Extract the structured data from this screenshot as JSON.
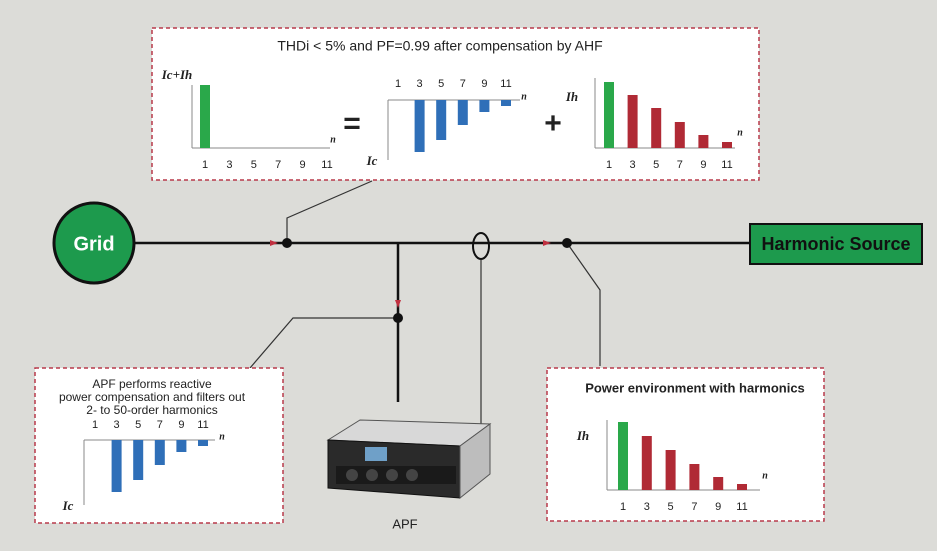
{
  "top_panel": {
    "title": "THDi < 5% and PF=0.99 after compensation by  AHF",
    "total_chart": {
      "y_label": "Ic+Ih",
      "x_label": "n",
      "orders": [
        1,
        3,
        5,
        7,
        9,
        11
      ]
    },
    "equals": "=",
    "ic_chart": {
      "y_label": "Ic",
      "x_label": "n",
      "orders": [
        1,
        3,
        5,
        7,
        9,
        11
      ]
    },
    "plus": "+",
    "ih_chart": {
      "y_label": "Ih",
      "x_label": "n",
      "orders": [
        1,
        3,
        5,
        7,
        9,
        11
      ]
    }
  },
  "grid": {
    "label": "Grid"
  },
  "harmonic_source": {
    "label": "Harmonic Source"
  },
  "apf_panel": {
    "lines": [
      "APF performs reactive",
      "power compensation and filters out",
      "2- to 50-order harmonics"
    ],
    "ic_chart": {
      "y_label": "Ic",
      "x_label": "n",
      "orders": [
        1,
        3,
        5,
        7,
        9,
        11
      ]
    }
  },
  "harmonics_panel": {
    "title": "Power environment with harmonics",
    "ih_chart": {
      "y_label": "Ih",
      "x_label": "n",
      "orders": [
        1,
        3,
        5,
        7,
        9,
        11
      ]
    }
  },
  "apf": {
    "label": "APF"
  }
}
